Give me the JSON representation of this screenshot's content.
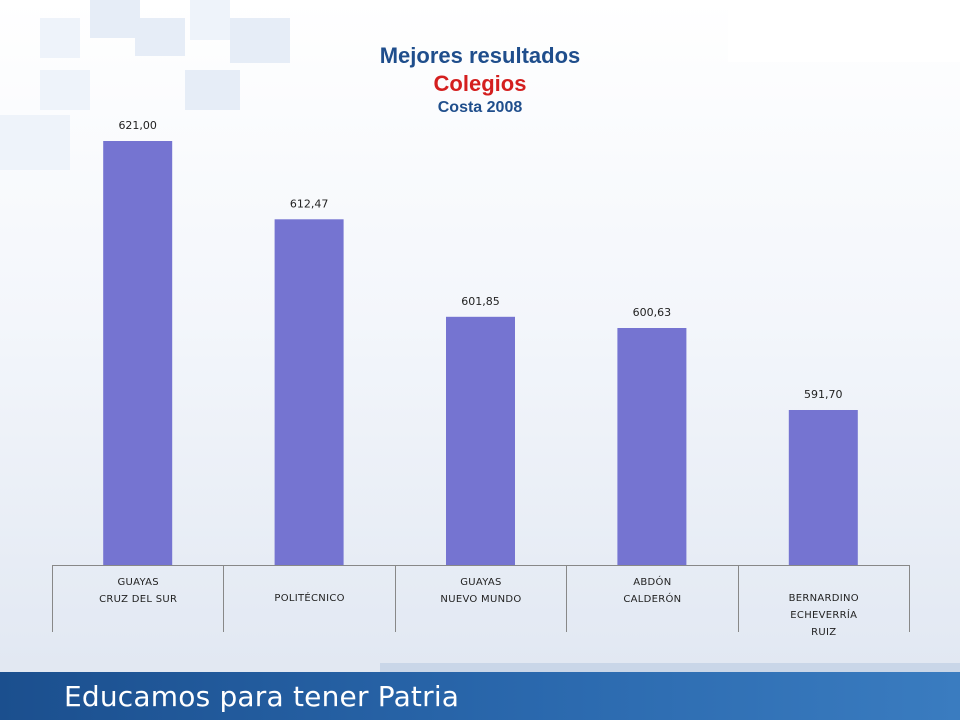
{
  "title": {
    "line1": "Mejores resultados",
    "line2": "Colegios",
    "line3": "Costa 2008"
  },
  "colors": {
    "bar": "#7574d1",
    "title_blue": "#1f4e8c",
    "title_red": "#d41f1f",
    "footer": "#1b4f8e"
  },
  "chart_data": {
    "type": "bar",
    "categories": [
      [
        "GUAYAS",
        "CRUZ DEL SUR"
      ],
      [
        "POLITÉCNICO"
      ],
      [
        "GUAYAS",
        "NUEVO MUNDO"
      ],
      [
        "ABDÓN",
        "CALDERÓN"
      ],
      [
        "BERNARDINO",
        "ECHEVERRÍA",
        "RUIZ"
      ]
    ],
    "values": [
      621.0,
      612.47,
      601.85,
      600.63,
      591.7
    ],
    "value_labels": [
      "621,00",
      "612,47",
      "601,85",
      "600,63",
      "591,70"
    ],
    "title": "Mejores resultados Colegios Costa 2008",
    "xlabel": "",
    "ylabel": "",
    "grid": false,
    "legend": "none"
  },
  "footer": {
    "tagline": "Educamos para tener Patria"
  }
}
